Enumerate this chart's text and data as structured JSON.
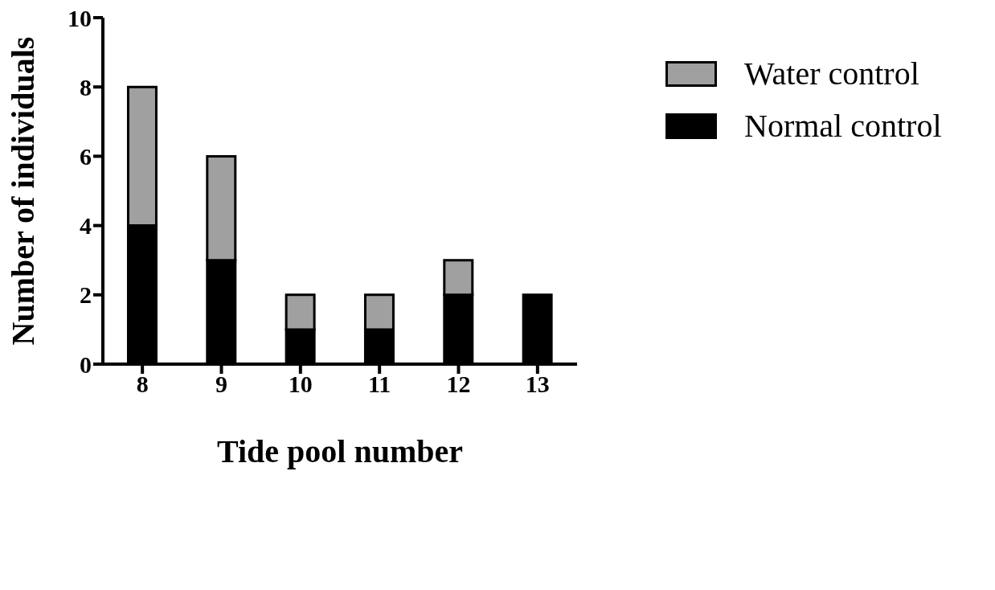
{
  "chart_data": {
    "type": "bar",
    "stacked": true,
    "xlabel": "Tide pool number",
    "ylabel": "Number of individuals",
    "categories": [
      "8",
      "9",
      "10",
      "11",
      "12",
      "13"
    ],
    "series": [
      {
        "name": "Normal control",
        "color": "#000000",
        "values": [
          4,
          3,
          1,
          1,
          2,
          2
        ]
      },
      {
        "name": "Water control",
        "color": "#a0a0a0",
        "values": [
          4,
          3,
          1,
          1,
          1,
          0
        ]
      }
    ],
    "ylim": [
      0,
      10
    ],
    "yticks": [
      0,
      2,
      4,
      6,
      8,
      10
    ],
    "grid": false,
    "legend": "top right"
  }
}
